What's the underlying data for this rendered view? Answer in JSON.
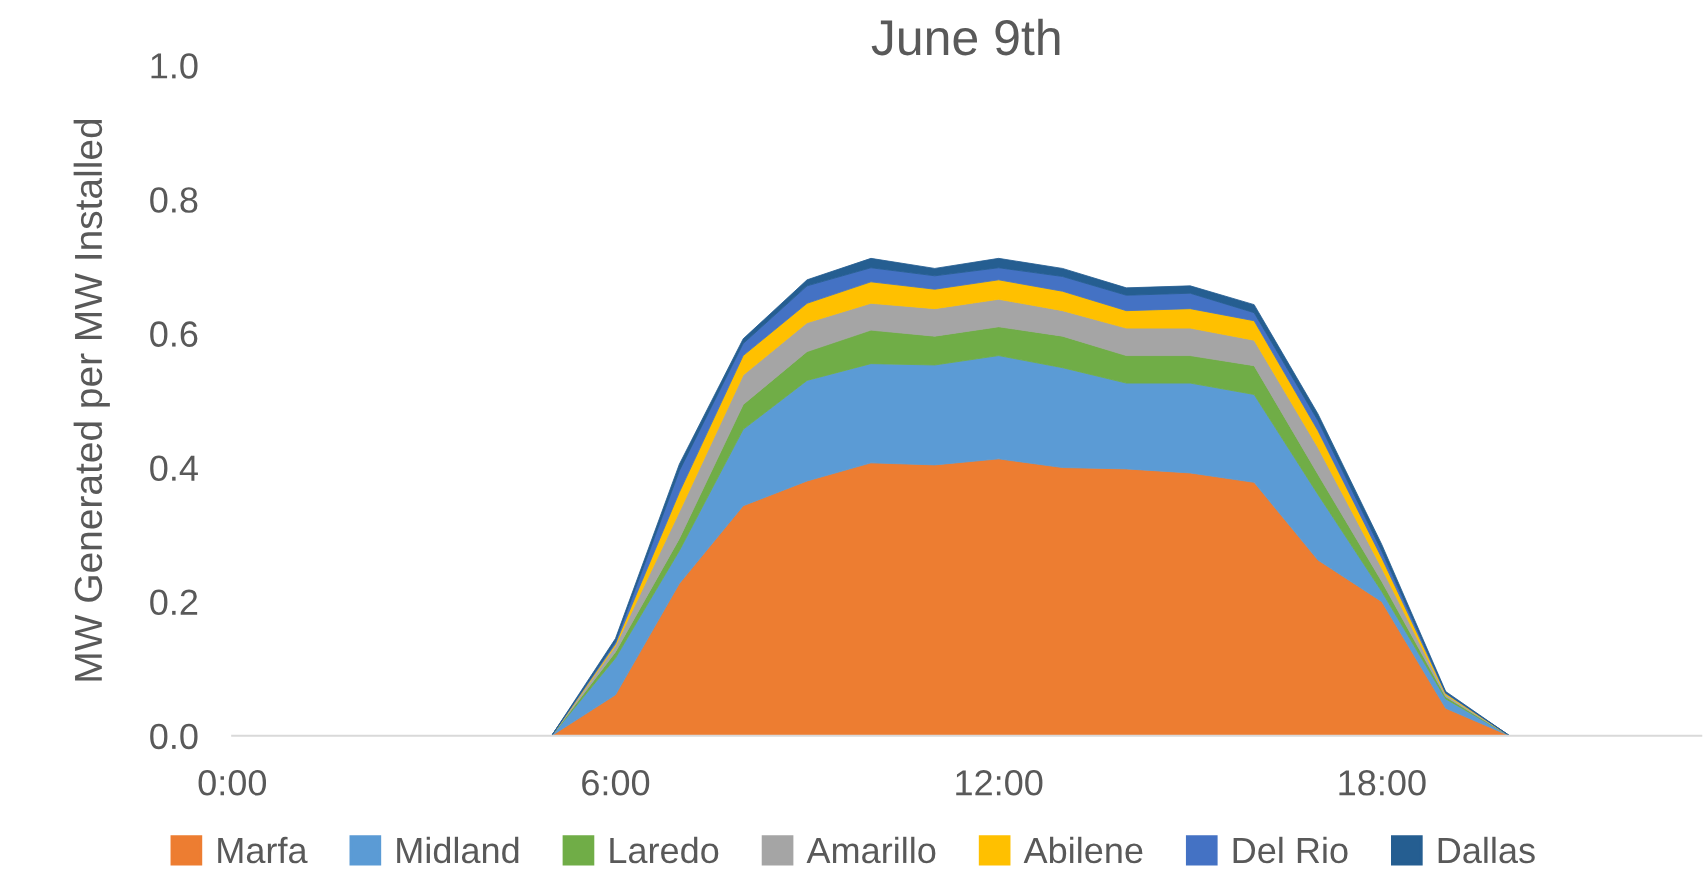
{
  "chart_data": {
    "type": "area",
    "stacked": true,
    "title": "June 9th",
    "ylabel": "MW Generated per MW Installed",
    "x": [
      0,
      1,
      2,
      3,
      4,
      5,
      6,
      7,
      8,
      9,
      10,
      11,
      12,
      13,
      14,
      15,
      16,
      17,
      18,
      19,
      20,
      21,
      22,
      23
    ],
    "xlim": [
      0,
      23
    ],
    "xticks": [
      {
        "value": 0,
        "label": "0:00"
      },
      {
        "value": 6,
        "label": "6:00"
      },
      {
        "value": 12,
        "label": "12:00"
      },
      {
        "value": 18,
        "label": "18:00"
      }
    ],
    "ylim": [
      0,
      1
    ],
    "yticks": [
      {
        "value": 0,
        "label": "0.0"
      },
      {
        "value": 0.2,
        "label": "0.2"
      },
      {
        "value": 0.4,
        "label": "0.4"
      },
      {
        "value": 0.6,
        "label": "0.6"
      },
      {
        "value": 0.8,
        "label": "0.8"
      },
      {
        "value": 1,
        "label": "1.0"
      }
    ],
    "grid": false,
    "legend": "bottom",
    "series": [
      {
        "name": "Marfa",
        "color": "#ed7d31",
        "values": [
          0,
          0,
          0,
          0,
          0,
          0,
          0.061,
          0.227,
          0.343,
          0.38,
          0.407,
          0.404,
          0.413,
          0.4,
          0.398,
          0.392,
          0.378,
          0.262,
          0.2,
          0.041,
          0,
          0,
          0,
          0
        ]
      },
      {
        "name": "Midland",
        "color": "#5b9bd5",
        "values": [
          0,
          0,
          0,
          0,
          0,
          0,
          0.055,
          0.049,
          0.114,
          0.15,
          0.148,
          0.149,
          0.154,
          0.149,
          0.128,
          0.134,
          0.131,
          0.098,
          0.015,
          0.014,
          0,
          0,
          0,
          0
        ]
      },
      {
        "name": "Laredo",
        "color": "#70ad47",
        "values": [
          0,
          0,
          0,
          0,
          0,
          0,
          0.009,
          0.018,
          0.037,
          0.043,
          0.05,
          0.043,
          0.043,
          0.047,
          0.041,
          0.041,
          0.043,
          0.03,
          0.015,
          0.003,
          0,
          0,
          0,
          0
        ]
      },
      {
        "name": "Amarillo",
        "color": "#a5a5a5",
        "values": [
          0,
          0,
          0,
          0,
          0,
          0,
          0.009,
          0.04,
          0.044,
          0.043,
          0.04,
          0.041,
          0.041,
          0.038,
          0.041,
          0.041,
          0.038,
          0.04,
          0.02,
          0.003,
          0,
          0,
          0,
          0
        ]
      },
      {
        "name": "Abilene",
        "color": "#ffc000",
        "values": [
          0,
          0,
          0,
          0,
          0,
          0,
          0.003,
          0.029,
          0.029,
          0.029,
          0.032,
          0.029,
          0.029,
          0.029,
          0.026,
          0.029,
          0.029,
          0.025,
          0.015,
          0.002,
          0,
          0,
          0,
          0
        ]
      },
      {
        "name": "Del Rio",
        "color": "#4472c4",
        "values": [
          0,
          0,
          0,
          0,
          0,
          0,
          0.003,
          0.032,
          0.018,
          0.026,
          0.021,
          0.02,
          0.018,
          0.022,
          0.023,
          0.023,
          0.012,
          0.015,
          0.01,
          0.001,
          0,
          0,
          0,
          0
        ]
      },
      {
        "name": "Dallas",
        "color": "#255e91",
        "values": [
          0,
          0,
          0,
          0,
          0,
          0,
          0.005,
          0.01,
          0.007,
          0.009,
          0.014,
          0.011,
          0.014,
          0.012,
          0.011,
          0.011,
          0.012,
          0.01,
          0.01,
          0.002,
          0,
          0,
          0,
          0
        ]
      }
    ]
  }
}
